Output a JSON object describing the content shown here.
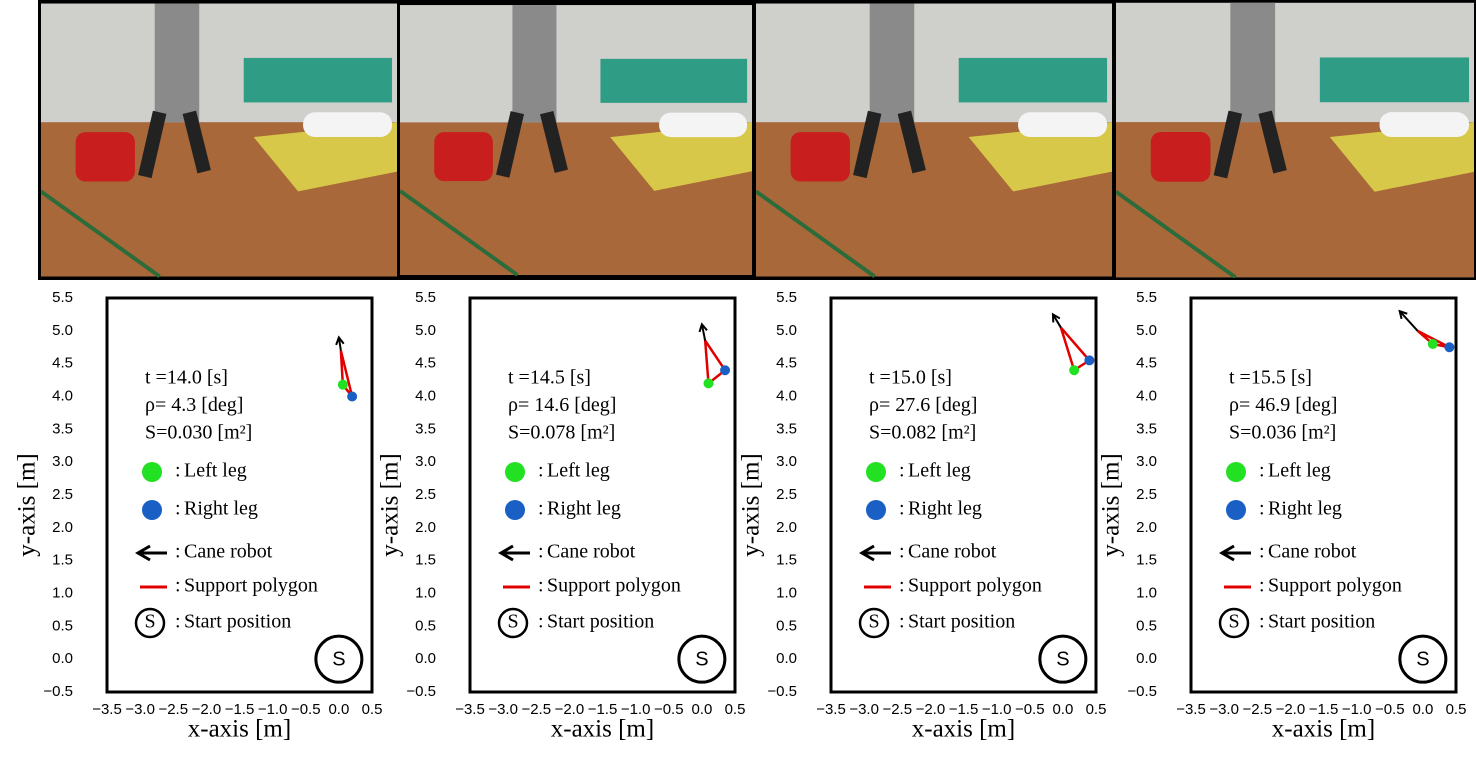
{
  "chart_data": [
    {
      "type": "scatter",
      "xlabel": "x-axis [m]",
      "ylabel": "y-axis [m]",
      "xlim": [
        -3.5,
        0.5
      ],
      "ylim": [
        -0.5,
        5.5
      ],
      "xticks": [
        {
          "value": -3.5,
          "label": "−3.5"
        },
        {
          "value": -3,
          "label": "−3.0"
        },
        {
          "value": -2.5,
          "label": "−2.5"
        },
        {
          "value": -2,
          "label": "−2.0"
        },
        {
          "value": -1.5,
          "label": "−1.5"
        },
        {
          "value": -1,
          "label": "−1.0"
        },
        {
          "value": -0.5,
          "label": "−0.5"
        },
        {
          "value": 0,
          "label": "0.0"
        },
        0.5
      ],
      "yticks": [
        {
          "value": -0.5,
          "label": "−0.5"
        },
        {
          "value": 0,
          "label": "0.0"
        },
        0.5,
        {
          "value": 1,
          "label": "1.0"
        },
        1.5,
        {
          "value": 2,
          "label": "2.0"
        },
        2.5,
        {
          "value": 3,
          "label": "3.0"
        },
        3.5,
        {
          "value": 4,
          "label": "4.0"
        },
        4.5,
        {
          "value": 5,
          "label": "5.0"
        },
        5.5
      ],
      "annotations": [
        "t =14.0 [s]",
        "ρ= 4.3 [deg]",
        "S=0.030 [m²]"
      ],
      "legend_prefix": ":",
      "series": [
        {
          "name": "Left leg",
          "color": "#22e022",
          "x": [
            0.06
          ],
          "y": [
            4.18
          ]
        },
        {
          "name": "Right leg",
          "color": "#1a5fc4",
          "x": [
            0.2
          ],
          "y": [
            4.0
          ]
        }
      ],
      "cane_robot": {
        "name": "Cane robot",
        "color": "#000000",
        "x": [
          0.03,
          0.0
        ],
        "y": [
          4.7,
          4.9
        ]
      },
      "support_polygon": {
        "name": "Support polygon",
        "color": "#e00000"
      },
      "start_position": {
        "name": "Start position",
        "symbol": "S",
        "x": 0,
        "y": 0
      }
    },
    {
      "type": "scatter",
      "xlabel": "x-axis [m]",
      "ylabel": "y-axis [m]",
      "xlim": [
        -3.5,
        0.5
      ],
      "ylim": [
        -0.5,
        5.5
      ],
      "xticks": [
        {
          "value": -3.5,
          "label": "−3.5"
        },
        {
          "value": -3,
          "label": "−3.0"
        },
        {
          "value": -2.5,
          "label": "−2.5"
        },
        {
          "value": -2,
          "label": "−2.0"
        },
        {
          "value": -1.5,
          "label": "−1.5"
        },
        {
          "value": -1,
          "label": "−1.0"
        },
        {
          "value": -0.5,
          "label": "−0.5"
        },
        {
          "value": 0,
          "label": "0.0"
        },
        0.5
      ],
      "yticks": [
        {
          "value": -0.5,
          "label": "−0.5"
        },
        {
          "value": 0,
          "label": "0.0"
        },
        0.5,
        {
          "value": 1,
          "label": "1.0"
        },
        1.5,
        {
          "value": 2,
          "label": "2.0"
        },
        2.5,
        {
          "value": 3,
          "label": "3.0"
        },
        3.5,
        {
          "value": 4,
          "label": "4.0"
        },
        4.5,
        {
          "value": 5,
          "label": "5.0"
        },
        5.5
      ],
      "annotations": [
        "t =14.5 [s]",
        "ρ= 14.6 [deg]",
        "S=0.078 [m²]"
      ],
      "legend_prefix": ":",
      "series": [
        {
          "name": "Left leg",
          "color": "#22e022",
          "x": [
            0.1
          ],
          "y": [
            4.2
          ]
        },
        {
          "name": "Right leg",
          "color": "#1a5fc4",
          "x": [
            0.35
          ],
          "y": [
            4.4
          ]
        }
      ],
      "cane_robot": {
        "name": "Cane robot",
        "color": "#000000",
        "x": [
          0.05,
          0.0
        ],
        "y": [
          4.85,
          5.1
        ]
      },
      "support_polygon": {
        "name": "Support polygon",
        "color": "#e00000"
      },
      "start_position": {
        "name": "Start position",
        "symbol": "S",
        "x": 0,
        "y": 0
      }
    },
    {
      "type": "scatter",
      "xlabel": "x-axis [m]",
      "ylabel": "y-axis [m]",
      "xlim": [
        -3.5,
        0.5
      ],
      "ylim": [
        -0.5,
        5.5
      ],
      "xticks": [
        {
          "value": -3.5,
          "label": "−3.5"
        },
        {
          "value": -3,
          "label": "−3.0"
        },
        {
          "value": -2.5,
          "label": "−2.5"
        },
        {
          "value": -2,
          "label": "−2.0"
        },
        {
          "value": -1.5,
          "label": "−1.5"
        },
        {
          "value": -1,
          "label": "−1.0"
        },
        {
          "value": -0.5,
          "label": "−0.5"
        },
        {
          "value": 0,
          "label": "0.0"
        },
        0.5
      ],
      "yticks": [
        {
          "value": -0.5,
          "label": "−0.5"
        },
        {
          "value": 0,
          "label": "0.0"
        },
        0.5,
        {
          "value": 1,
          "label": "1.0"
        },
        1.5,
        {
          "value": 2,
          "label": "2.0"
        },
        2.5,
        {
          "value": 3,
          "label": "3.0"
        },
        3.5,
        {
          "value": 4,
          "label": "4.0"
        },
        4.5,
        {
          "value": 5,
          "label": "5.0"
        },
        5.5
      ],
      "annotations": [
        "t =15.0 [s]",
        "ρ= 27.6 [deg]",
        "S=0.082 [m²]"
      ],
      "legend_prefix": ":",
      "series": [
        {
          "name": "Left leg",
          "color": "#22e022",
          "x": [
            0.17
          ],
          "y": [
            4.4
          ]
        },
        {
          "name": "Right leg",
          "color": "#1a5fc4",
          "x": [
            0.4
          ],
          "y": [
            4.55
          ]
        }
      ],
      "cane_robot": {
        "name": "Cane robot",
        "color": "#000000",
        "x": [
          -0.03,
          -0.15
        ],
        "y": [
          5.05,
          5.25
        ]
      },
      "support_polygon": {
        "name": "Support polygon",
        "color": "#e00000"
      },
      "start_position": {
        "name": "Start position",
        "symbol": "S",
        "x": 0,
        "y": 0
      }
    },
    {
      "type": "scatter",
      "xlabel": "x-axis [m]",
      "ylabel": "y-axis [m]",
      "xlim": [
        -3.5,
        0.5
      ],
      "ylim": [
        -0.5,
        5.5
      ],
      "xticks": [
        {
          "value": -3.5,
          "label": "−3.5"
        },
        {
          "value": -3,
          "label": "−3.0"
        },
        {
          "value": -2.5,
          "label": "−2.5"
        },
        {
          "value": -2,
          "label": "−2.0"
        },
        {
          "value": -1.5,
          "label": "−1.5"
        },
        {
          "value": -1,
          "label": "−1.0"
        },
        {
          "value": -0.5,
          "label": "−0.5"
        },
        {
          "value": 0,
          "label": "0.0"
        },
        0.5
      ],
      "yticks": [
        {
          "value": -0.5,
          "label": "−0.5"
        },
        {
          "value": 0,
          "label": "0.0"
        },
        0.5,
        {
          "value": 1,
          "label": "1.0"
        },
        1.5,
        {
          "value": 2,
          "label": "2.0"
        },
        2.5,
        {
          "value": 3,
          "label": "3.0"
        },
        3.5,
        {
          "value": 4,
          "label": "4.0"
        },
        4.5,
        {
          "value": 5,
          "label": "5.0"
        },
        5.5
      ],
      "annotations": [
        "t =15.5 [s]",
        "ρ= 46.9 [deg]",
        "S=0.036 [m²]"
      ],
      "legend_prefix": ":",
      "series": [
        {
          "name": "Left leg",
          "color": "#22e022",
          "x": [
            0.15
          ],
          "y": [
            4.8
          ]
        },
        {
          "name": "Right leg",
          "color": "#1a5fc4",
          "x": [
            0.4
          ],
          "y": [
            4.75
          ]
        }
      ],
      "cane_robot": {
        "name": "Cane robot",
        "color": "#000000",
        "x": [
          -0.08,
          -0.35
        ],
        "y": [
          5.0,
          5.3
        ]
      },
      "support_polygon": {
        "name": "Support polygon",
        "color": "#e00000"
      },
      "start_position": {
        "name": "Start position",
        "symbol": "S",
        "x": 0,
        "y": 0
      }
    }
  ]
}
